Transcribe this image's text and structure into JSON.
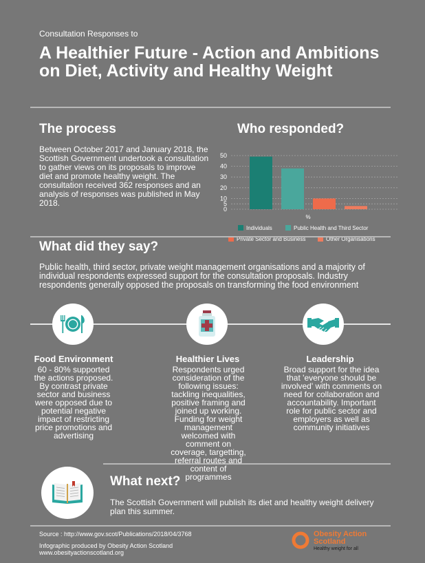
{
  "header": {
    "kicker": "Consultation Responses to",
    "title": "A Healthier Future - Action and Ambitions on Diet, Activity and Healthy Weight"
  },
  "process": {
    "heading": "The process",
    "text": "Between October 2017 and January 2018, the Scottish Government undertook a consultation to gather views on its proposals to improve diet and promote healthy weight.  The consultation received 362 responses and an analysis of responses was published in May 2018."
  },
  "who": {
    "heading": "Who responded?"
  },
  "chart_data": {
    "type": "bar",
    "categories": [
      "Individuals",
      "Public Health and Third Sector",
      "Private Sector and Business",
      "Other Organisations"
    ],
    "values": [
      49,
      38,
      10,
      3
    ],
    "xlabel": "%",
    "ylabel": "",
    "ylim": [
      0,
      50
    ],
    "yticks": [
      0,
      5,
      10,
      20,
      30,
      40,
      50
    ],
    "grid": true,
    "legend": "bottom",
    "colors": [
      "#1b7f73",
      "#4aa79c",
      "#ee6b4b",
      "#ee7c5e"
    ]
  },
  "say": {
    "heading": "What did they say?",
    "text": "Public health, third sector, private weight management organisations and a majority of individual respondents expressed support for the consultation proposals.  Industry respondents generally opposed the proposals on transforming the food environment"
  },
  "columns": [
    {
      "icon": "plate-cutlery-icon",
      "title": "Food Environment",
      "text": "60 - 80% supported the actions proposed.  By contrast private sector and business were opposed due to potential negative impact of restricting price promotions and advertising"
    },
    {
      "icon": "medicine-bottle-icon",
      "title": "Healthier Lives",
      "text": "Respondents urged consideration of the following issues: tackling inequalities, positive framing and joined up working.  Funding for weight management welcomed with comment on coverage, targetting, referral routes and content of programmes"
    },
    {
      "icon": "handshake-icon",
      "title": "Leadership",
      "text": "Broad support for the idea that 'everyone should be involved' with comments on need for collaboration and accountability. Important role for public sector and employers as well as community initiatives"
    }
  ],
  "next": {
    "heading": "What next?",
    "text": "The Scottish Government will publish its diet and healthy weight delivery plan this summer.",
    "icon": "open-book-icon"
  },
  "footer": {
    "source": "Source : http://www.gov.scot/Publications/2018/04/3768",
    "produced": "Infographic produced by Obesity Action Scotland",
    "website": "www.obesityactionscotland.org"
  },
  "logo": {
    "name_line1": "Obesity Action",
    "name_line2": "Scotland",
    "tagline": "Healthy weight for all",
    "color": "#ef7a35"
  }
}
